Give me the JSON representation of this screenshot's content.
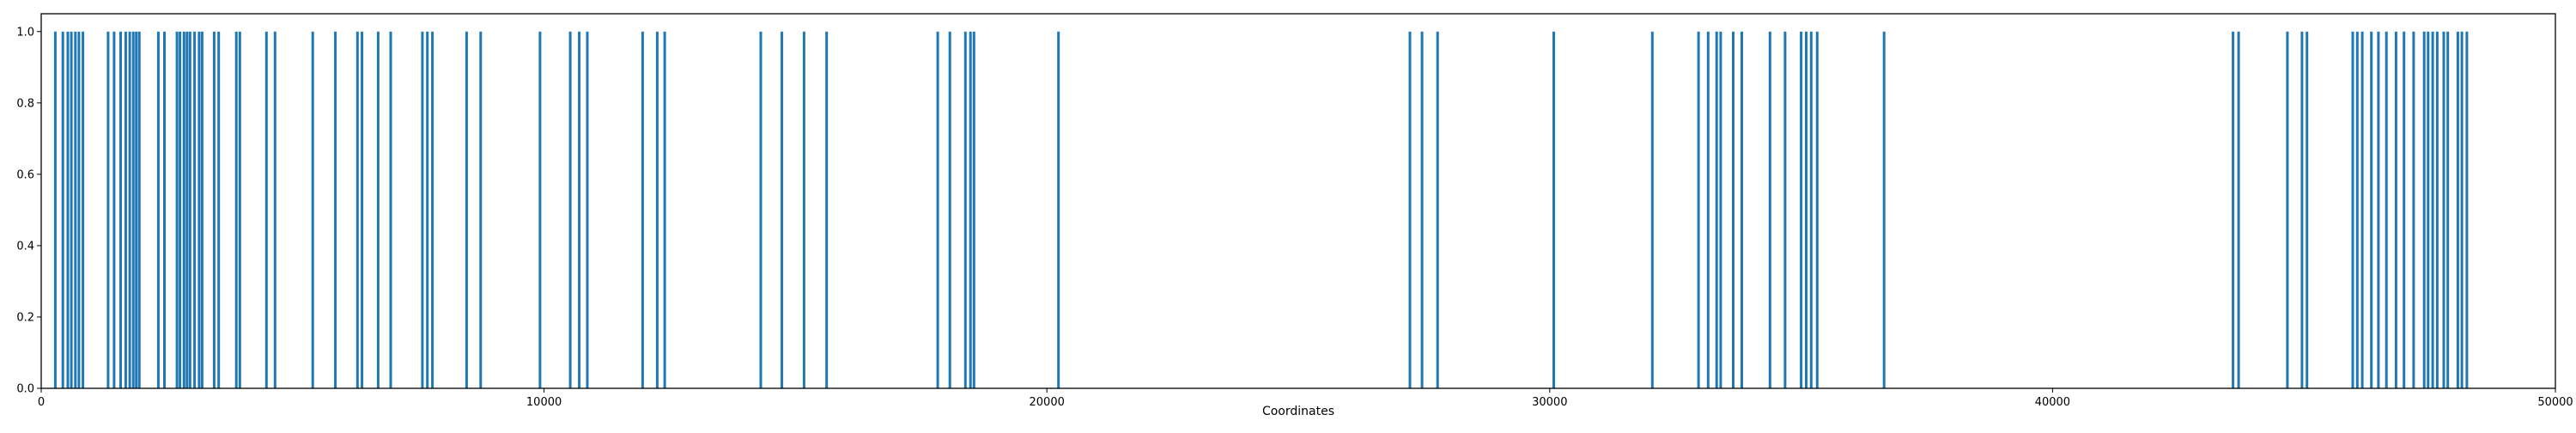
{
  "chart_data": {
    "type": "bar",
    "title": "",
    "xlabel": "Coordinates",
    "ylabel": "",
    "xlim": [
      0,
      50000
    ],
    "ylim": [
      0,
      1.05
    ],
    "grid": false,
    "colors": {
      "bar": "#1f77b4",
      "axis": "#000000",
      "background": "#ffffff"
    },
    "x_ticks": [
      0,
      10000,
      20000,
      30000,
      40000,
      50000
    ],
    "x_tick_labels": [
      "0",
      "10000",
      "20000",
      "30000",
      "40000",
      "50000"
    ],
    "y_ticks": [
      0.0,
      0.2,
      0.4,
      0.6,
      0.8,
      1.0
    ],
    "y_tick_labels": [
      "0.0",
      "0.2",
      "0.4",
      "0.6",
      "0.8",
      "1.0"
    ],
    "series": [
      {
        "x": [
          280,
          430,
          530,
          600,
          680,
          750,
          830,
          1330,
          1450,
          1580,
          1680,
          1760,
          1830,
          1890,
          1950,
          2330,
          2450,
          2700,
          2760,
          2840,
          2900,
          2960,
          3050,
          3140,
          3200,
          3440,
          3530,
          3880,
          3950,
          4480,
          4650,
          5400,
          5850,
          6290,
          6380,
          6700,
          6950,
          7580,
          7680,
          7780,
          8460,
          8740,
          9920,
          10520,
          10700,
          10860,
          11960,
          12250,
          12400,
          14310,
          14730,
          15170,
          15620,
          17830,
          18070,
          18380,
          18480,
          18550,
          20230,
          27220,
          27460,
          27770,
          30080,
          32040,
          32960,
          33150,
          33320,
          33400,
          33650,
          33820,
          34380,
          34680,
          35000,
          35100,
          35200,
          35320,
          36650,
          43590,
          43700,
          44670,
          44960,
          45060,
          45970,
          46060,
          46160,
          46340,
          46480,
          46640,
          46830,
          46990,
          47180,
          47390,
          47470,
          47560,
          47650,
          47780,
          47860,
          48060,
          48140,
          48240
        ],
        "values": [
          1,
          1,
          1,
          1,
          1,
          1,
          1,
          1,
          1,
          1,
          1,
          1,
          1,
          1,
          1,
          1,
          1,
          1,
          1,
          1,
          1,
          1,
          1,
          1,
          1,
          1,
          1,
          1,
          1,
          1,
          1,
          1,
          1,
          1,
          1,
          1,
          1,
          1,
          1,
          1,
          1,
          1,
          1,
          1,
          1,
          1,
          1,
          1,
          1,
          1,
          1,
          1,
          1,
          1,
          1,
          1,
          1,
          1,
          1,
          1,
          1,
          1,
          1,
          1,
          1,
          1,
          1,
          1,
          1,
          1,
          1,
          1,
          1,
          1,
          1,
          1,
          1,
          1,
          1,
          1,
          1,
          1,
          1,
          1,
          1,
          1,
          1,
          1,
          1,
          1,
          1,
          1,
          1,
          1,
          1,
          1,
          1,
          1,
          1,
          1
        ]
      }
    ]
  }
}
